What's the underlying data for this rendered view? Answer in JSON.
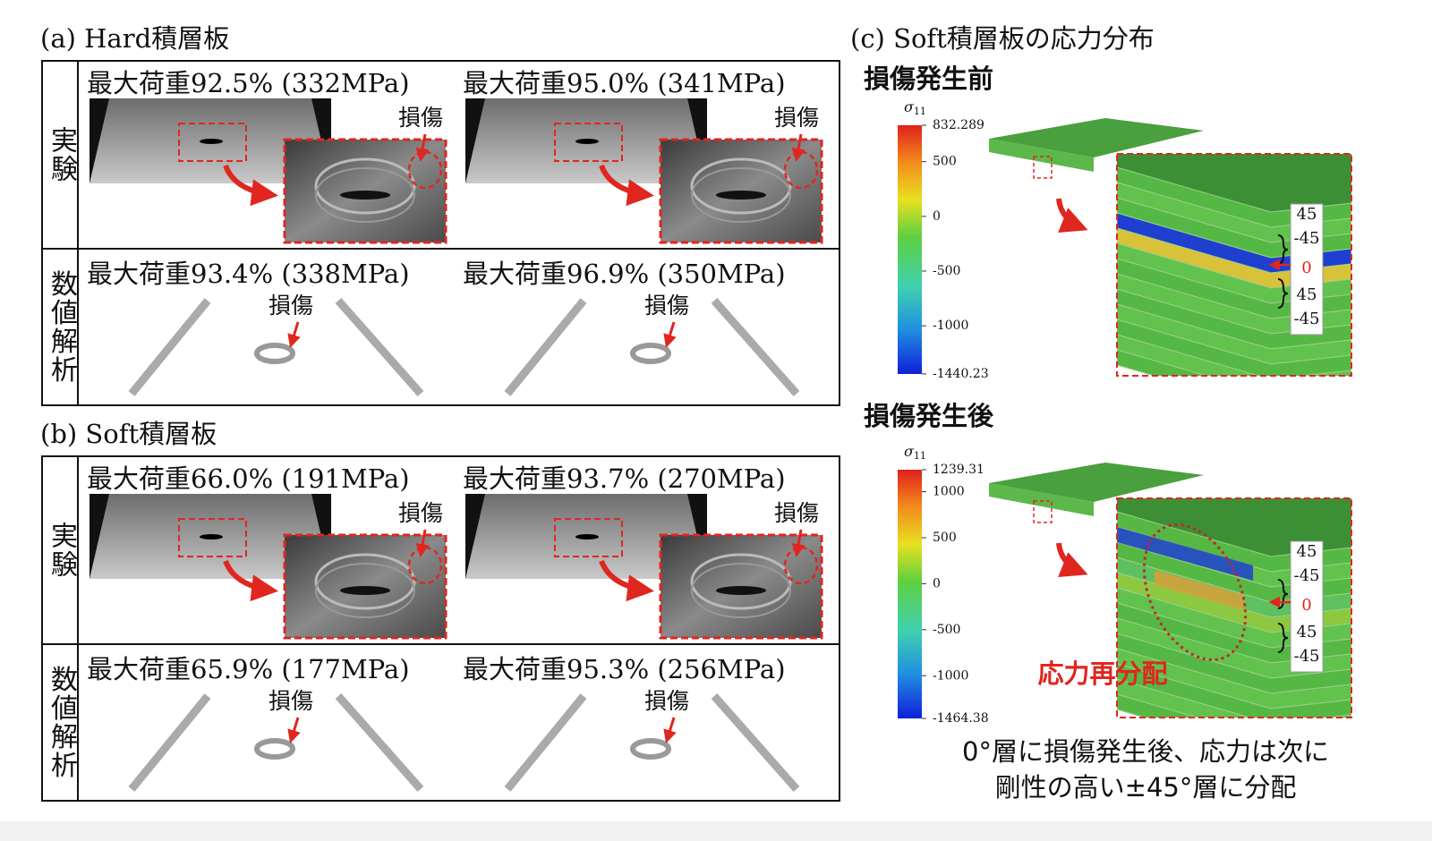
{
  "panel_a": {
    "title": "(a) Hard積層板",
    "rows": [
      {
        "label": "実験",
        "cells": [
          {
            "caption": "最大荷重92.5% (332MPa)",
            "damage": "損傷"
          },
          {
            "caption": "最大荷重95.0% (341MPa)",
            "damage": "損傷"
          }
        ]
      },
      {
        "label": "数値解析",
        "cells": [
          {
            "caption": "最大荷重93.4% (338MPa)",
            "damage": "損傷"
          },
          {
            "caption": "最大荷重96.9% (350MPa)",
            "damage": "損傷"
          }
        ]
      }
    ]
  },
  "panel_b": {
    "title": "(b) Soft積層板",
    "rows": [
      {
        "label": "実験",
        "cells": [
          {
            "caption": "最大荷重66.0% (191MPa)",
            "damage": "損傷"
          },
          {
            "caption": "最大荷重93.7% (270MPa)",
            "damage": "損傷"
          }
        ]
      },
      {
        "label": "数値解析",
        "cells": [
          {
            "caption": "最大荷重65.9% (177MPa)",
            "damage": "損傷"
          },
          {
            "caption": "最大荷重95.3% (256MPa)",
            "damage": "損傷"
          }
        ]
      }
    ]
  },
  "panel_c": {
    "title": "(c) Soft積層板の応力分布",
    "states": [
      {
        "heading": "損傷発生前",
        "colorbar": {
          "symbol": "σ",
          "subscript": "11",
          "labels": [
            "832.289",
            "500",
            "0",
            "-500",
            "-1000",
            "-1440.23"
          ]
        },
        "layers": [
          "45",
          "-45",
          "0",
          "45",
          "-45"
        ]
      },
      {
        "heading": "損傷発生後",
        "colorbar": {
          "symbol": "σ",
          "subscript": "11",
          "labels": [
            "1239.31",
            "1000",
            "500",
            "0",
            "-500",
            "-1000",
            "-1464.38"
          ]
        },
        "layers": [
          "45",
          "-45",
          "0",
          "45",
          "-45"
        ],
        "annotation": "応力再分配"
      }
    ],
    "caption": [
      "0°層に損傷発生後、応力は次に",
      "剛性の高い±45°層に分配"
    ]
  }
}
